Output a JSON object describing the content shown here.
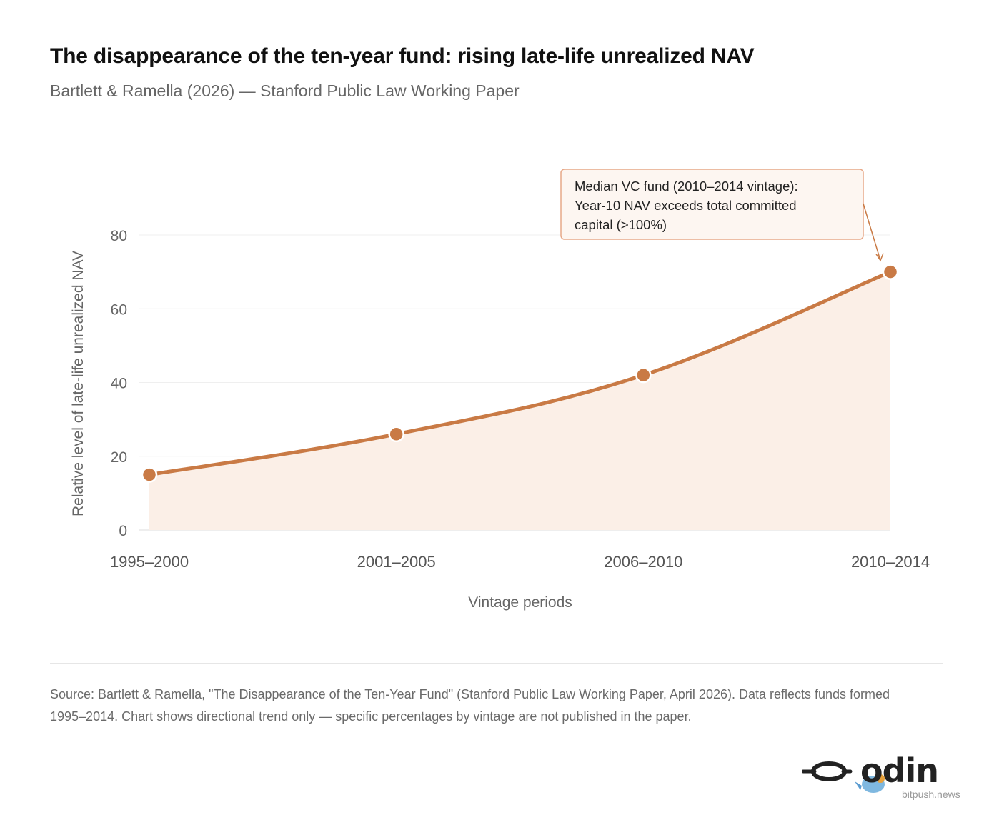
{
  "header": {
    "title": "The disappearance of the ten-year fund: rising late-life unrealized NAV",
    "subtitle": "Bartlett & Ramella (2026) — Stanford Public Law Working Paper"
  },
  "chart_data": {
    "type": "area",
    "title": "The disappearance of the ten-year fund: rising late-life unrealized NAV",
    "subtitle": "Bartlett & Ramella (2026) — Stanford Public Law Working Paper",
    "xlabel": "Vintage periods",
    "ylabel": "Relative level of late-life unrealized NAV",
    "categories": [
      "1995–2000",
      "2001–2005",
      "2006–2010",
      "2010–2014"
    ],
    "values": [
      15,
      26,
      42,
      70
    ],
    "ylim": [
      0,
      80
    ],
    "yticks": [
      0,
      20,
      40,
      60,
      80
    ],
    "grid": true,
    "colors": {
      "line": "#c97a45",
      "fill": "#fbefe7",
      "marker_stroke": "#ffffff",
      "annotation_border": "#e7a888",
      "annotation_bg": "#fdf6f1"
    },
    "annotation": {
      "lines": [
        "Median VC fund (2010–2014 vintage):",
        "Year-10 NAV exceeds total committed",
        "capital (>100%)"
      ],
      "target_index": 3
    }
  },
  "source": "Source: Bartlett & Ramella, \"The Disappearance of the Ten-Year Fund\" (Stanford Public Law Working Paper, April 2026). Data reflects funds formed 1995–2014. Chart shows directional trend only — specific percentages by vintage are not published in the paper.",
  "watermark": {
    "logo_text": "odin",
    "site": "bitpush.news"
  }
}
